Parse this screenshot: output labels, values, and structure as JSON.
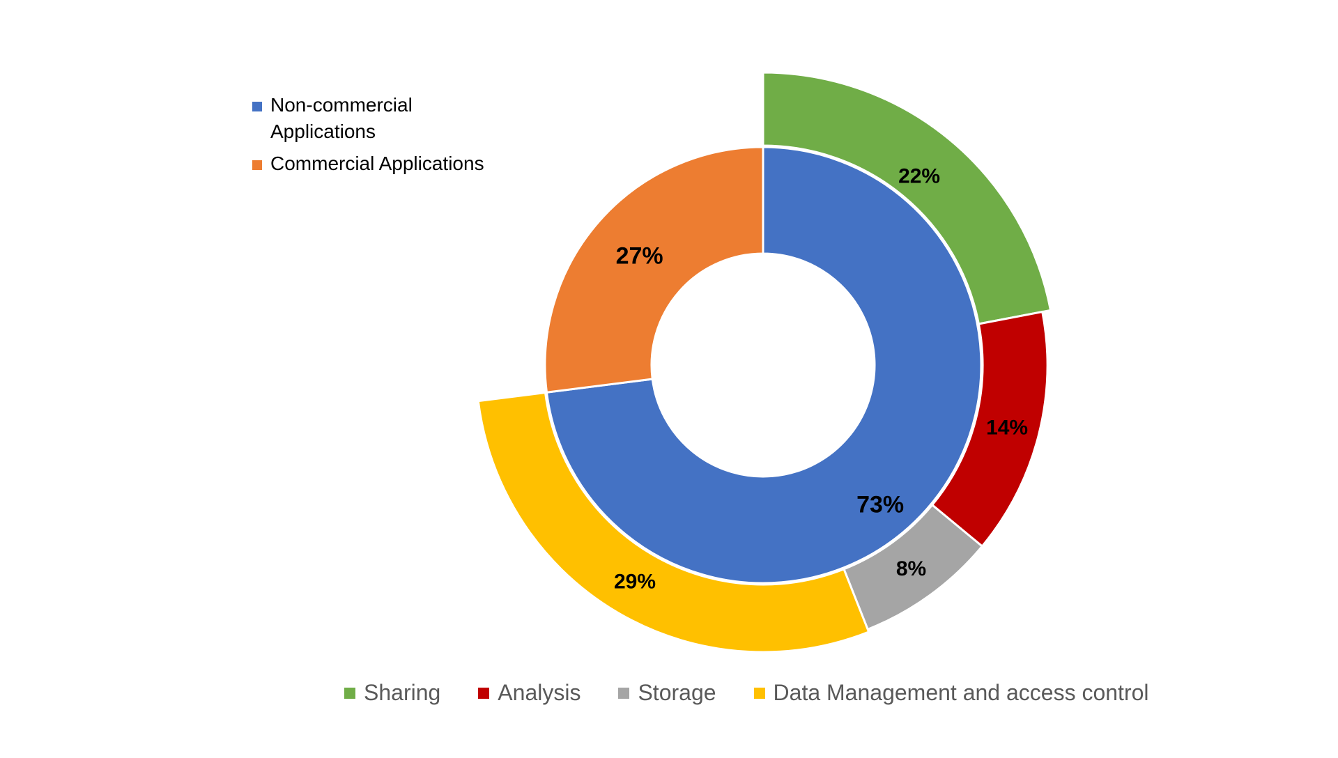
{
  "chart_data": {
    "type": "pie",
    "subtype": "nested donut",
    "inner_ring": {
      "slices": [
        {
          "label": "Non-commercial Applications",
          "value": 73,
          "display": "73%",
          "color": "#4472C4"
        },
        {
          "label": "Commercial Applications",
          "value": 27,
          "display": "27%",
          "color": "#ED7D31"
        }
      ]
    },
    "outer_ring": {
      "slices": [
        {
          "label": "Sharing",
          "value": 22,
          "display": "22%",
          "color": "#70AD47"
        },
        {
          "label": "Analysis",
          "value": 14,
          "display": "14%",
          "color": "#C00000"
        },
        {
          "label": "Storage",
          "value": 8,
          "display": "8%",
          "color": "#A5A5A5"
        },
        {
          "label": "Data Management and access control",
          "value": 29,
          "display": "29%",
          "color": "#FFC000"
        }
      ]
    },
    "legend_top": {
      "placement": "top-left",
      "items": [
        {
          "label": "Non-commercial Applications",
          "color": "#4472C4"
        },
        {
          "label": "Commercial Applications",
          "color": "#ED7D31"
        }
      ]
    },
    "legend_bottom": {
      "placement": "bottom",
      "items": [
        {
          "label": "Sharing",
          "color": "#70AD47"
        },
        {
          "label": "Analysis",
          "color": "#C00000"
        },
        {
          "label": "Storage",
          "color": "#A5A5A5"
        },
        {
          "label": "Data Management and access control",
          "color": "#FFC000"
        }
      ]
    }
  }
}
